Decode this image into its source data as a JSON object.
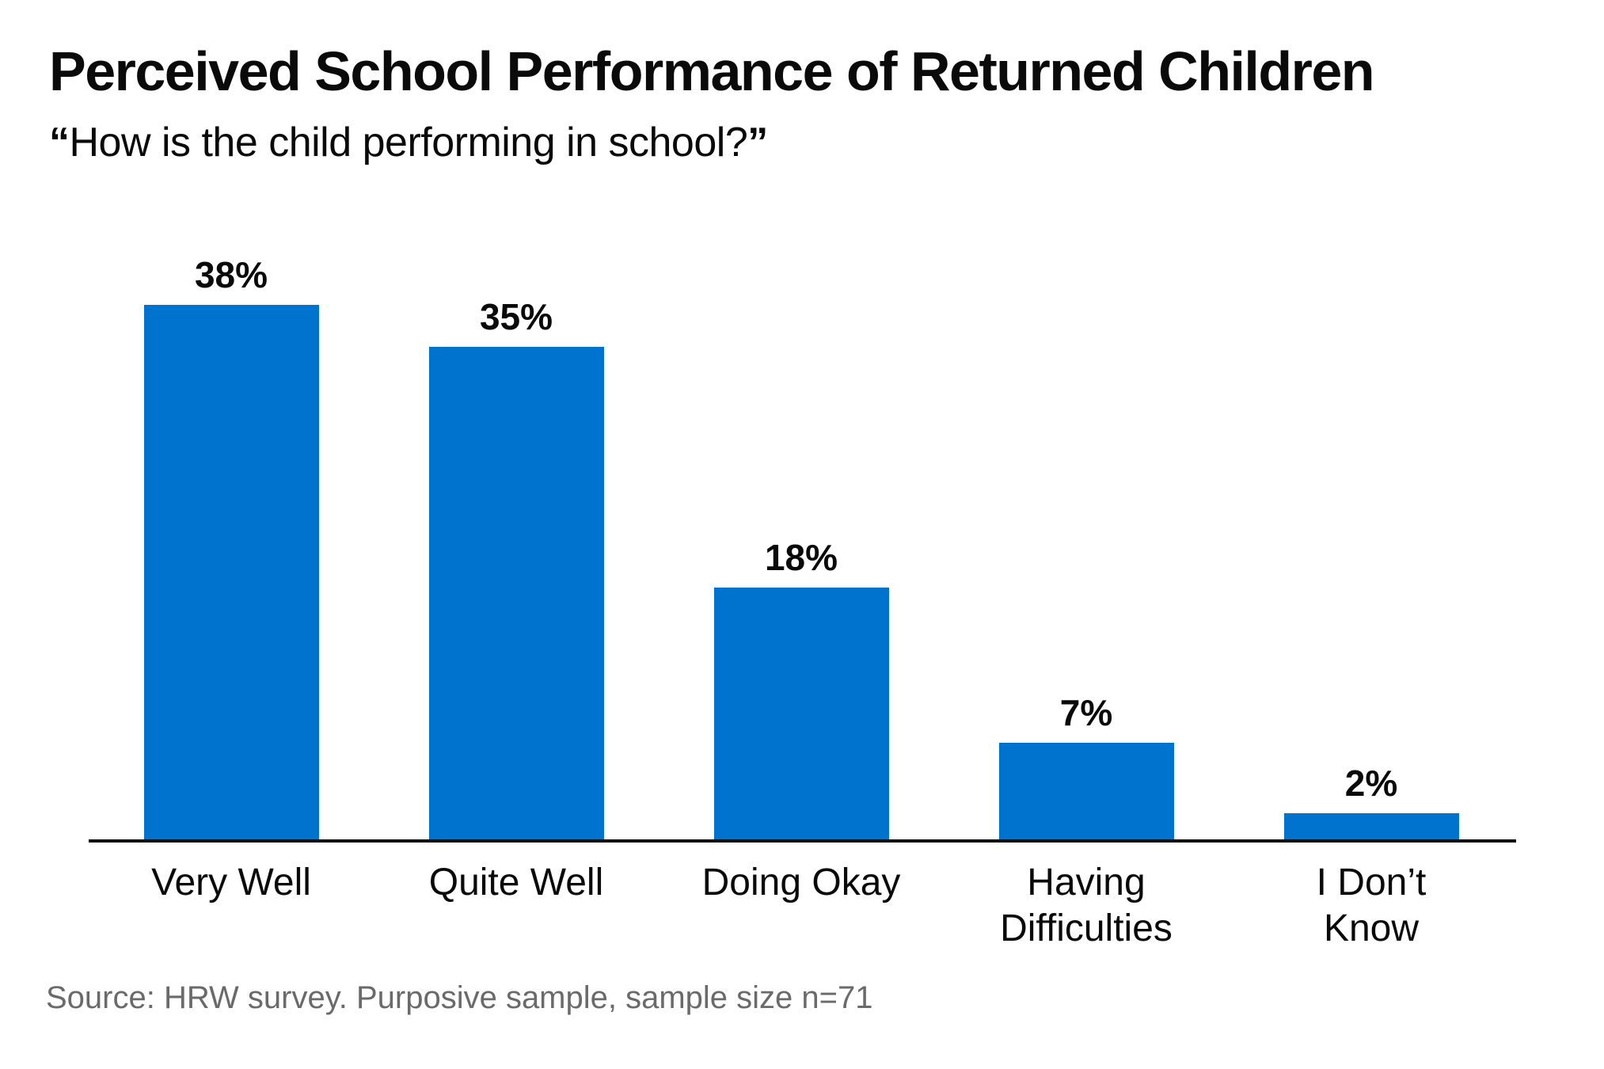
{
  "header": {
    "title": "Perceived School Performance of Returned Children",
    "subtitle_open_quote": "“",
    "subtitle_text": "How is the child performing in school?",
    "subtitle_close_quote": "”"
  },
  "chart_data": {
    "type": "bar",
    "title": "Perceived School Performance of Returned Children",
    "subtitle": "“How is the child performing in school?”",
    "categories": [
      "Very Well",
      "Quite Well",
      "Doing Okay",
      "Having\nDifficulties",
      "I Don’t\nKnow"
    ],
    "values": [
      38,
      35,
      18,
      7,
      2
    ],
    "value_labels": [
      "38%",
      "35%",
      "18%",
      "7%",
      "2%"
    ],
    "unit": "%",
    "ylim": [
      0,
      42
    ],
    "grid": false,
    "legend": false,
    "bar_color": "#0073CF",
    "axis_line_color": "#111111"
  },
  "footer": {
    "source": "Source: HRW survey. Purposive sample, sample size n=71"
  },
  "colors": {
    "bar_blue": "#0073CF",
    "text_black": "#0a0a0a",
    "source_gray": "#6a6a6a"
  }
}
